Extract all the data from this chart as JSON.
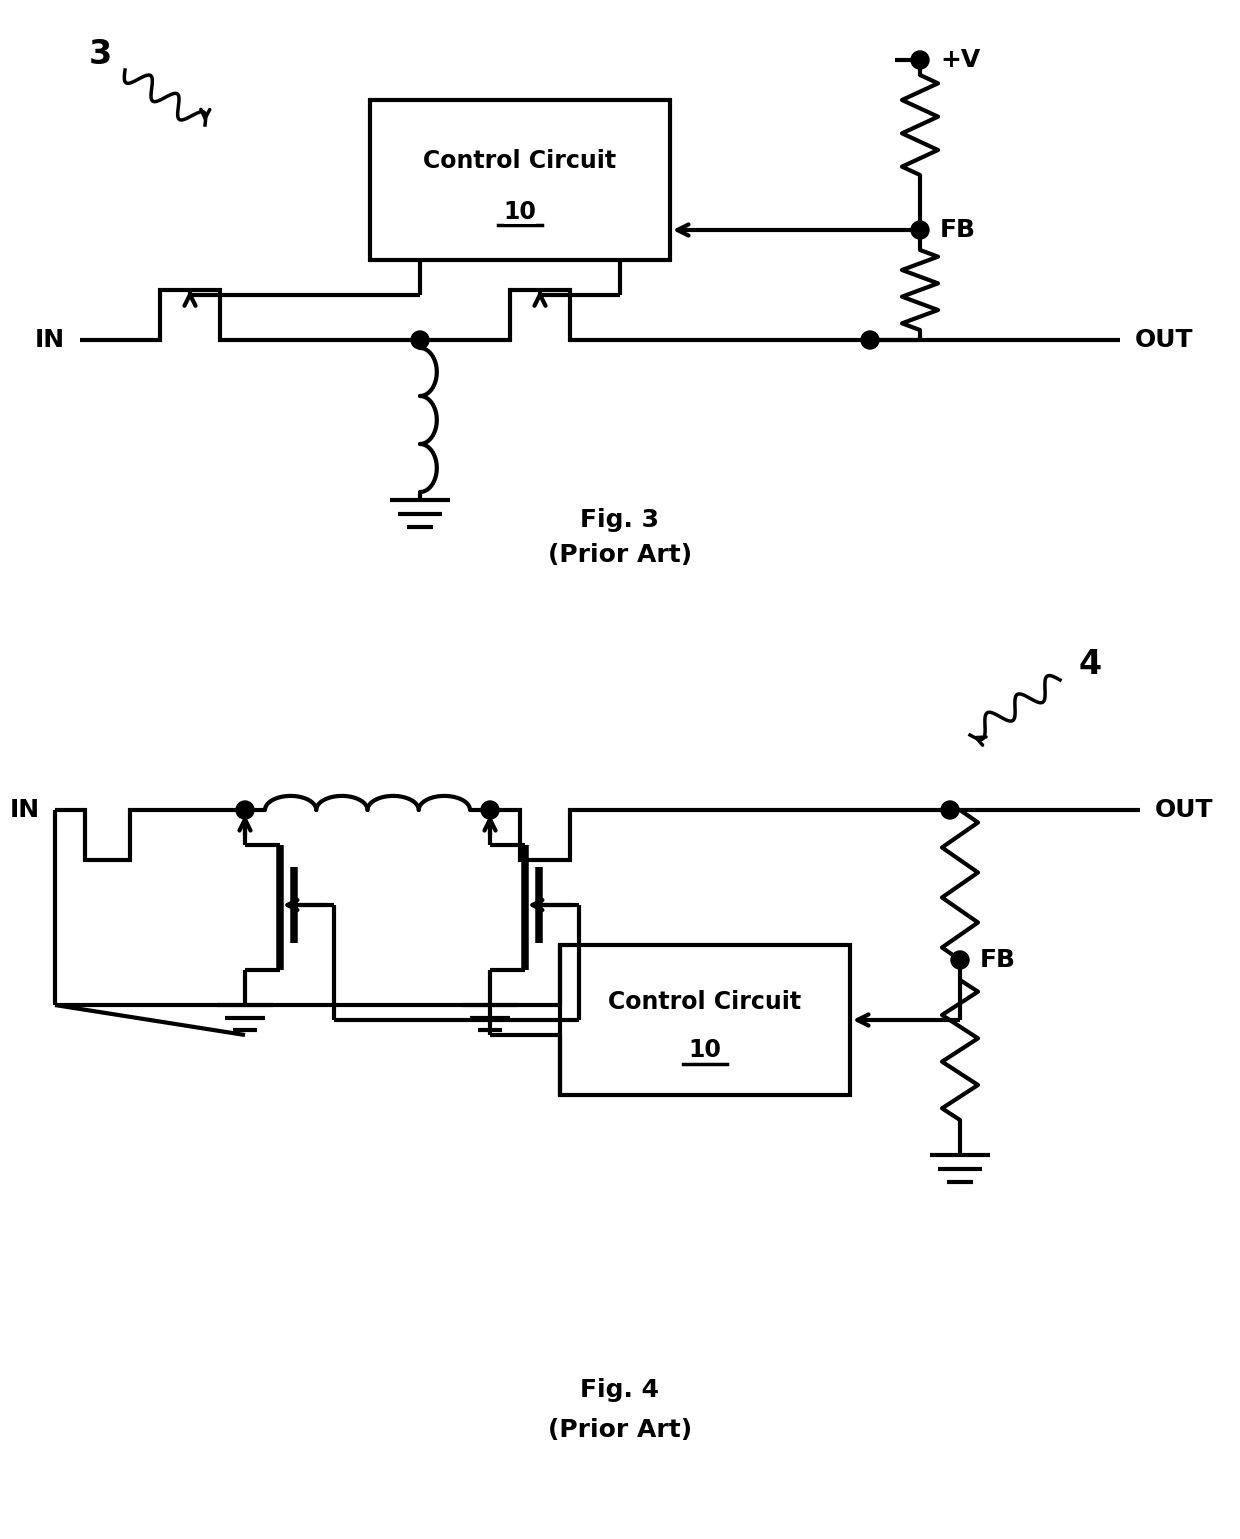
{
  "fig3": {
    "label": "3",
    "title": "Fig. 3",
    "subtitle": "(Prior Art)",
    "cc_label": "Control Circuit",
    "cc_num": "10",
    "in_label": "IN",
    "out_label": "OUT",
    "fb_label": "FB",
    "v_label": "+V"
  },
  "fig4": {
    "label": "4",
    "title": "Fig. 4",
    "subtitle": "(Prior Art)",
    "cc_label": "Control Circuit",
    "cc_num": "10",
    "in_label": "IN",
    "out_label": "OUT",
    "fb_label": "FB"
  },
  "bg_color": "#ffffff",
  "line_color": "#000000",
  "lw": 3.0
}
